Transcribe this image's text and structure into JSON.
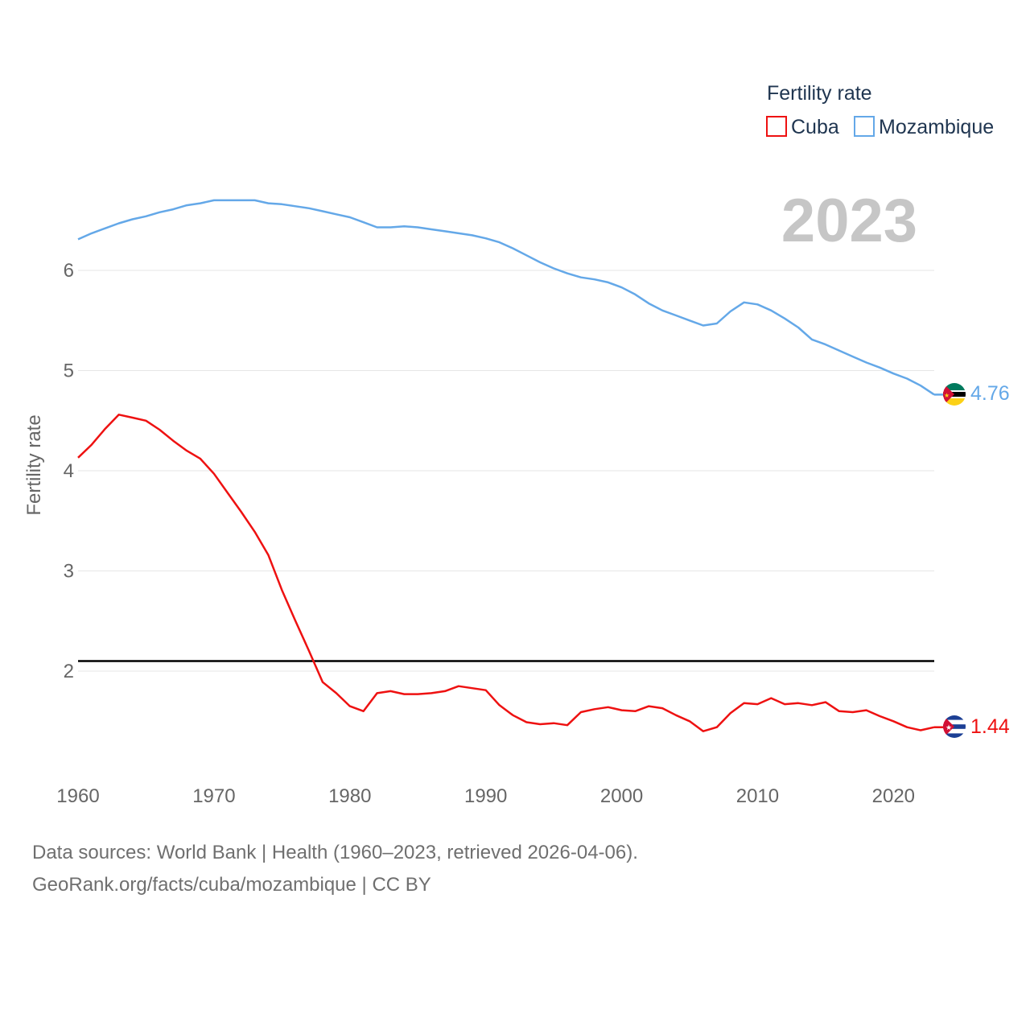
{
  "chart_data": {
    "type": "line",
    "legend_title": "Fertility rate",
    "ylabel": "Fertility rate",
    "xlabel": "",
    "xlim": [
      1960,
      2023
    ],
    "ylim": [
      1,
      7
    ],
    "year_label": "2023",
    "x_ticks": [
      1960,
      1970,
      1980,
      1990,
      2000,
      2010,
      2020
    ],
    "y_ticks": [
      2,
      3,
      4,
      5,
      6
    ],
    "reference_line": 2.1,
    "years": [
      1960,
      1961,
      1962,
      1963,
      1964,
      1965,
      1966,
      1967,
      1968,
      1969,
      1970,
      1971,
      1972,
      1973,
      1974,
      1975,
      1976,
      1977,
      1978,
      1979,
      1980,
      1981,
      1982,
      1983,
      1984,
      1985,
      1986,
      1987,
      1988,
      1989,
      1990,
      1991,
      1992,
      1993,
      1994,
      1995,
      1996,
      1997,
      1998,
      1999,
      2000,
      2001,
      2002,
      2003,
      2004,
      2005,
      2006,
      2007,
      2008,
      2009,
      2010,
      2011,
      2012,
      2013,
      2014,
      2015,
      2016,
      2017,
      2018,
      2019,
      2020,
      2021,
      2022,
      2023
    ],
    "series": [
      {
        "name": "Cuba",
        "color": "#ee1111",
        "end_label": "1.44",
        "flag": "cuba-flag",
        "values": [
          4.13,
          4.26,
          4.42,
          4.56,
          4.53,
          4.5,
          4.41,
          4.3,
          4.2,
          4.12,
          3.97,
          3.78,
          3.59,
          3.39,
          3.16,
          2.81,
          2.5,
          2.2,
          1.89,
          1.78,
          1.65,
          1.6,
          1.78,
          1.8,
          1.77,
          1.77,
          1.78,
          1.8,
          1.85,
          1.83,
          1.81,
          1.66,
          1.56,
          1.49,
          1.47,
          1.48,
          1.46,
          1.59,
          1.62,
          1.64,
          1.61,
          1.6,
          1.65,
          1.63,
          1.56,
          1.5,
          1.4,
          1.44,
          1.58,
          1.68,
          1.67,
          1.73,
          1.67,
          1.68,
          1.66,
          1.69,
          1.6,
          1.59,
          1.61,
          1.55,
          1.5,
          1.44,
          1.41,
          1.44
        ]
      },
      {
        "name": "Mozambique",
        "color": "#64a8e8",
        "end_label": "4.76",
        "flag": "mozambique-flag",
        "values": [
          6.31,
          6.37,
          6.42,
          6.47,
          6.51,
          6.54,
          6.58,
          6.61,
          6.65,
          6.67,
          6.7,
          6.7,
          6.7,
          6.7,
          6.67,
          6.66,
          6.64,
          6.62,
          6.59,
          6.56,
          6.53,
          6.48,
          6.43,
          6.43,
          6.44,
          6.43,
          6.41,
          6.39,
          6.37,
          6.35,
          6.32,
          6.28,
          6.22,
          6.15,
          6.08,
          6.02,
          5.97,
          5.93,
          5.91,
          5.88,
          5.83,
          5.76,
          5.67,
          5.6,
          5.55,
          5.5,
          5.45,
          5.47,
          5.59,
          5.68,
          5.66,
          5.6,
          5.52,
          5.43,
          5.31,
          5.26,
          5.2,
          5.14,
          5.08,
          5.03,
          4.97,
          4.92,
          4.85,
          4.76
        ]
      }
    ]
  },
  "footer": {
    "source_line": "Data sources: World Bank | Health (1960–2023, retrieved 2026-04-06).",
    "url_line": "GeoRank.org/facts/cuba/mozambique | CC BY"
  }
}
